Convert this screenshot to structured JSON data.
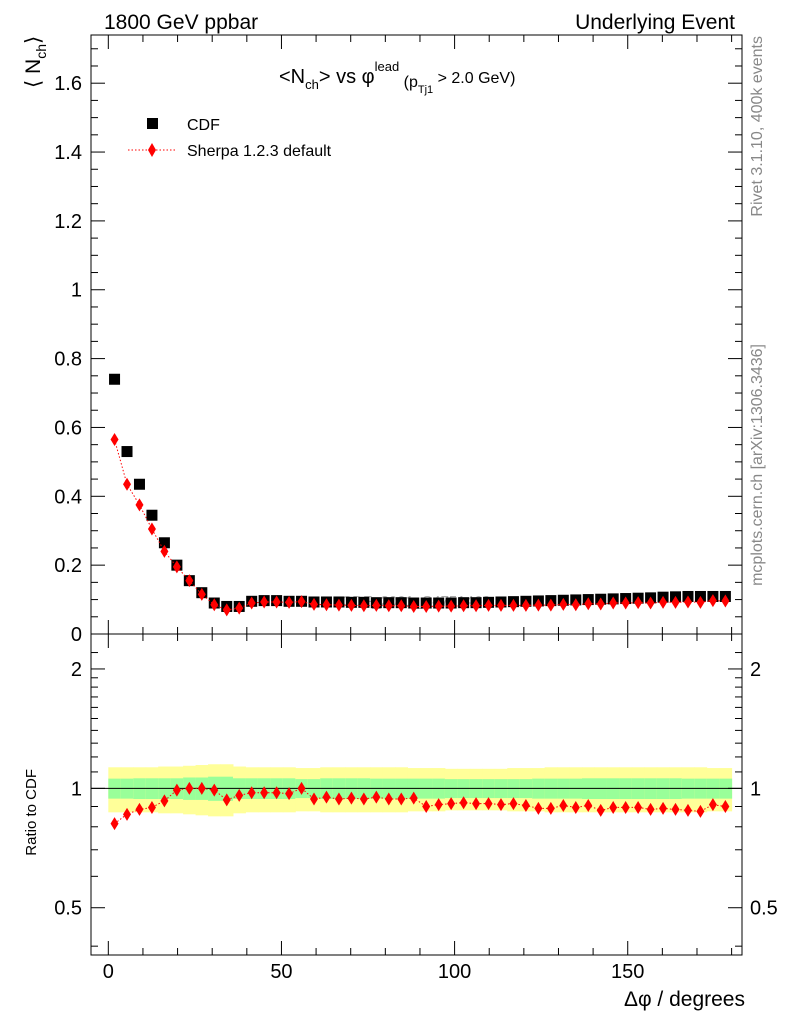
{
  "header": {
    "left": "1800 GeV ppbar",
    "right": "Underlying Event"
  },
  "side_labels": {
    "rivet": "Rivet 3.1.10,  400k events",
    "mcplots": "mcplots.cern.ch [arXiv:1306.3436]"
  },
  "watermark": "CDF_2001_S4751469",
  "chart_data": {
    "type": "scatter",
    "title": "<N_ch> vs φ^lead (p_Tj1 > 2.0 GeV)",
    "title_parts": {
      "main": "<N",
      "main_sub": "ch",
      "mid": "> vs φ",
      "sup": "lead",
      "paren_open": " (p",
      "paren_sub": "Tj1",
      "tail": " > 2.0 GeV)"
    },
    "ylabel": "⟨ N_ch ⟩",
    "ylabel_parts": {
      "open": "⟨ N",
      "sub": "ch",
      "close": "⟩"
    },
    "xlabel": "Δφ / degrees",
    "xlim": [
      -5,
      183
    ],
    "ylim": [
      0,
      1.74
    ],
    "y_ticks": [
      "0",
      "0.2",
      "0.4",
      "0.6",
      "0.8",
      "1",
      "1.2",
      "1.4",
      "1.6"
    ],
    "x_ticks": [
      "0",
      "50",
      "100",
      "150"
    ],
    "x": [
      1.8,
      5.4,
      9.0,
      12.6,
      16.2,
      19.8,
      23.4,
      27.0,
      30.6,
      34.2,
      37.8,
      41.4,
      45.0,
      48.6,
      52.2,
      55.8,
      59.4,
      63.0,
      66.6,
      70.2,
      73.8,
      77.4,
      81.0,
      84.6,
      88.2,
      91.8,
      95.4,
      99.0,
      102.6,
      106.2,
      109.8,
      113.4,
      117.0,
      120.6,
      124.2,
      127.8,
      131.4,
      135.0,
      138.6,
      142.2,
      145.8,
      149.4,
      153.0,
      156.6,
      160.2,
      163.8,
      167.4,
      171.0,
      174.6,
      178.2
    ],
    "series": [
      {
        "name": "CDF",
        "marker": "square",
        "color": "#000000",
        "values": [
          0.74,
          0.53,
          0.435,
          0.345,
          0.265,
          0.2,
          0.155,
          0.12,
          0.09,
          0.08,
          0.08,
          0.095,
          0.097,
          0.097,
          0.095,
          0.095,
          0.093,
          0.093,
          0.093,
          0.092,
          0.092,
          0.091,
          0.091,
          0.091,
          0.09,
          0.09,
          0.09,
          0.09,
          0.091,
          0.091,
          0.092,
          0.093,
          0.094,
          0.095,
          0.096,
          0.097,
          0.098,
          0.099,
          0.1,
          0.101,
          0.102,
          0.103,
          0.104,
          0.105,
          0.107,
          0.108,
          0.109,
          0.109,
          0.109,
          0.109
        ]
      },
      {
        "name": "Sherpa 1.2.3 default",
        "marker": "diamond",
        "color": "#ff0000",
        "values": [
          0.565,
          0.435,
          0.375,
          0.305,
          0.24,
          0.195,
          0.155,
          0.115,
          0.085,
          0.07,
          0.075,
          0.09,
          0.093,
          0.093,
          0.092,
          0.094,
          0.086,
          0.085,
          0.084,
          0.083,
          0.082,
          0.083,
          0.082,
          0.082,
          0.08,
          0.08,
          0.081,
          0.081,
          0.082,
          0.082,
          0.083,
          0.083,
          0.083,
          0.083,
          0.084,
          0.084,
          0.086,
          0.085,
          0.088,
          0.087,
          0.09,
          0.09,
          0.091,
          0.09,
          0.092,
          0.092,
          0.093,
          0.092,
          0.097,
          0.096
        ]
      }
    ],
    "ratio": {
      "ylabel": "Ratio to CDF",
      "scale": "log",
      "ylim": [
        0.38,
        2.45
      ],
      "y_ticks": [
        "0.5",
        "1",
        "2"
      ],
      "reference": 1,
      "band_inner_colour": "#99ff99",
      "band_outer_colour": "#ffff99",
      "band_inner": [
        0.058,
        0.058,
        0.06,
        0.06,
        0.06,
        0.06,
        0.065,
        0.065,
        0.07,
        0.07,
        0.06,
        0.06,
        0.06,
        0.06,
        0.06,
        0.055,
        0.055,
        0.06,
        0.06,
        0.06,
        0.06,
        0.058,
        0.058,
        0.058,
        0.058,
        0.058,
        0.058,
        0.055,
        0.055,
        0.055,
        0.055,
        0.055,
        0.055,
        0.055,
        0.058,
        0.058,
        0.058,
        0.058,
        0.06,
        0.06,
        0.06,
        0.06,
        0.06,
        0.06,
        0.06,
        0.06,
        0.058,
        0.058,
        0.058,
        0.058
      ],
      "band_outer": [
        0.13,
        0.13,
        0.13,
        0.13,
        0.135,
        0.135,
        0.14,
        0.145,
        0.15,
        0.15,
        0.135,
        0.13,
        0.13,
        0.13,
        0.13,
        0.125,
        0.125,
        0.13,
        0.13,
        0.13,
        0.13,
        0.13,
        0.13,
        0.13,
        0.125,
        0.125,
        0.125,
        0.12,
        0.12,
        0.12,
        0.12,
        0.12,
        0.125,
        0.125,
        0.125,
        0.13,
        0.13,
        0.13,
        0.13,
        0.13,
        0.13,
        0.13,
        0.13,
        0.13,
        0.13,
        0.13,
        0.13,
        0.13,
        0.125,
        0.125
      ],
      "values": [
        0.815,
        0.86,
        0.885,
        0.895,
        0.93,
        0.99,
        1.0,
        1.0,
        0.99,
        0.935,
        0.96,
        0.975,
        0.975,
        0.975,
        0.97,
        1.0,
        0.94,
        0.95,
        0.94,
        0.945,
        0.94,
        0.95,
        0.94,
        0.94,
        0.945,
        0.9,
        0.91,
        0.915,
        0.92,
        0.915,
        0.915,
        0.91,
        0.915,
        0.905,
        0.89,
        0.89,
        0.905,
        0.895,
        0.905,
        0.88,
        0.895,
        0.895,
        0.895,
        0.885,
        0.89,
        0.885,
        0.88,
        0.875,
        0.91,
        0.9
      ]
    }
  }
}
